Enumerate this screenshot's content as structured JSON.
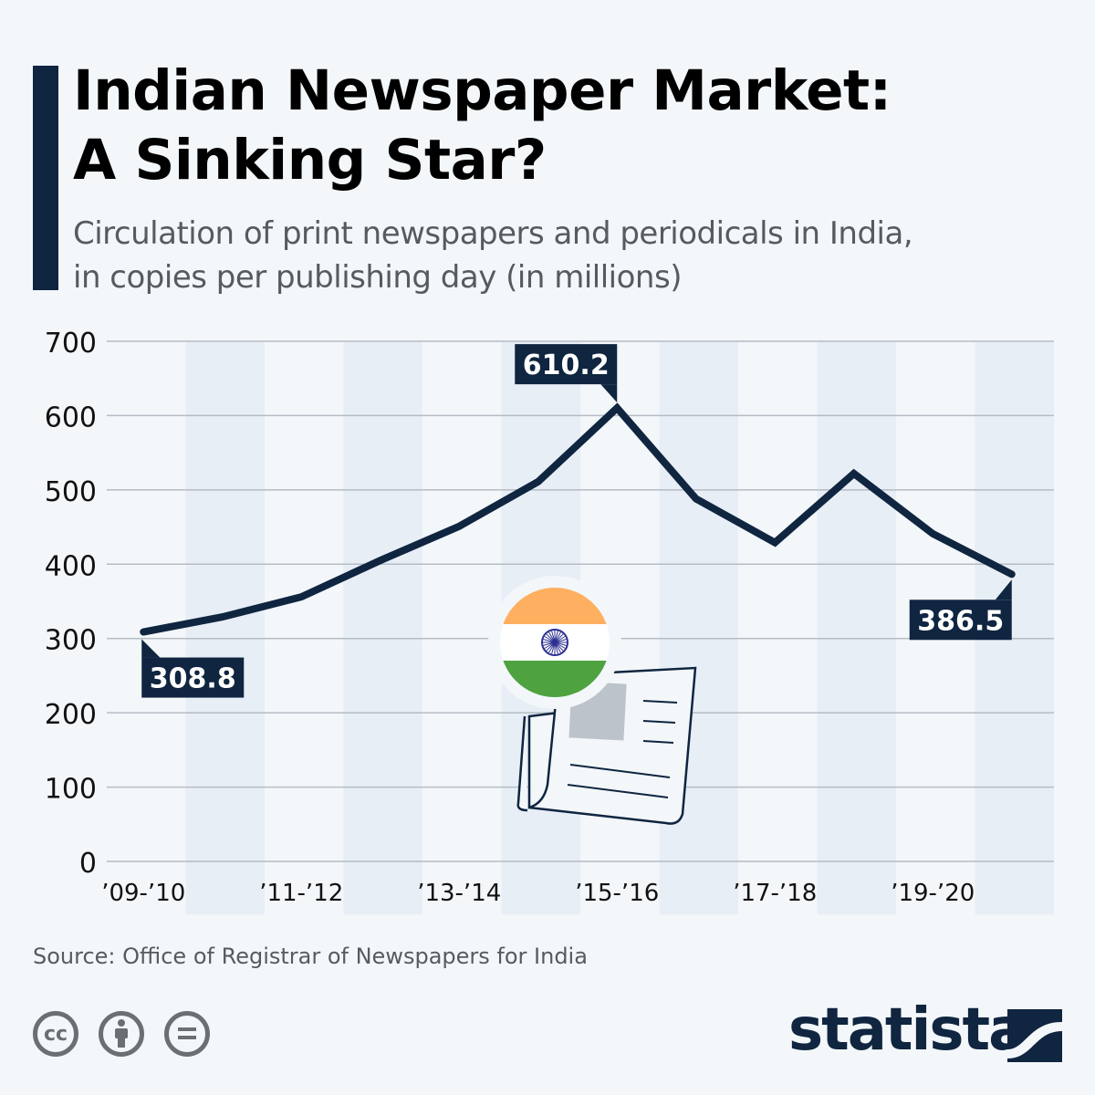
{
  "header": {
    "title_line1": "Indian Newspaper Market:",
    "title_line2": "A Sinking Star?",
    "subtitle_line1": "Circulation of print newspapers and periodicals in India,",
    "subtitle_line2": "in copies per publishing day (in millions)"
  },
  "chart_data": {
    "type": "line",
    "x_tick_labels": [
      "’09-’10",
      "",
      "’11-’12",
      "",
      "’13-’14",
      "",
      "’15-’16",
      "",
      "’17-’18",
      "",
      "’19-’20",
      ""
    ],
    "values": [
      308.8,
      329,
      356,
      405,
      451,
      511,
      610.2,
      488,
      429,
      522,
      441,
      386.5
    ],
    "data_labels": [
      {
        "index": 0,
        "text": "308.8"
      },
      {
        "index": 6,
        "text": "610.2"
      },
      {
        "index": 11,
        "text": "386.5"
      }
    ],
    "y_ticks": [
      "0",
      "100",
      "200",
      "300",
      "400",
      "500",
      "600",
      "700"
    ],
    "ylim": [
      0,
      700
    ],
    "grid": true,
    "line_color": "#0f2540",
    "band_color": "#e8eef6"
  },
  "illustration": {
    "icons": [
      "india-flag-icon",
      "newspaper-icon"
    ],
    "flag_colors": [
      "#ffaf60",
      "#ffffff",
      "#4ea340"
    ],
    "chakra_color": "#2e3192"
  },
  "footer": {
    "source": "Source: Office of Registrar of Newspapers for India",
    "license_icons": [
      "cc-icon",
      "attribution-icon",
      "no-derivatives-icon"
    ],
    "cc_text": "cc",
    "brand": "statista"
  }
}
